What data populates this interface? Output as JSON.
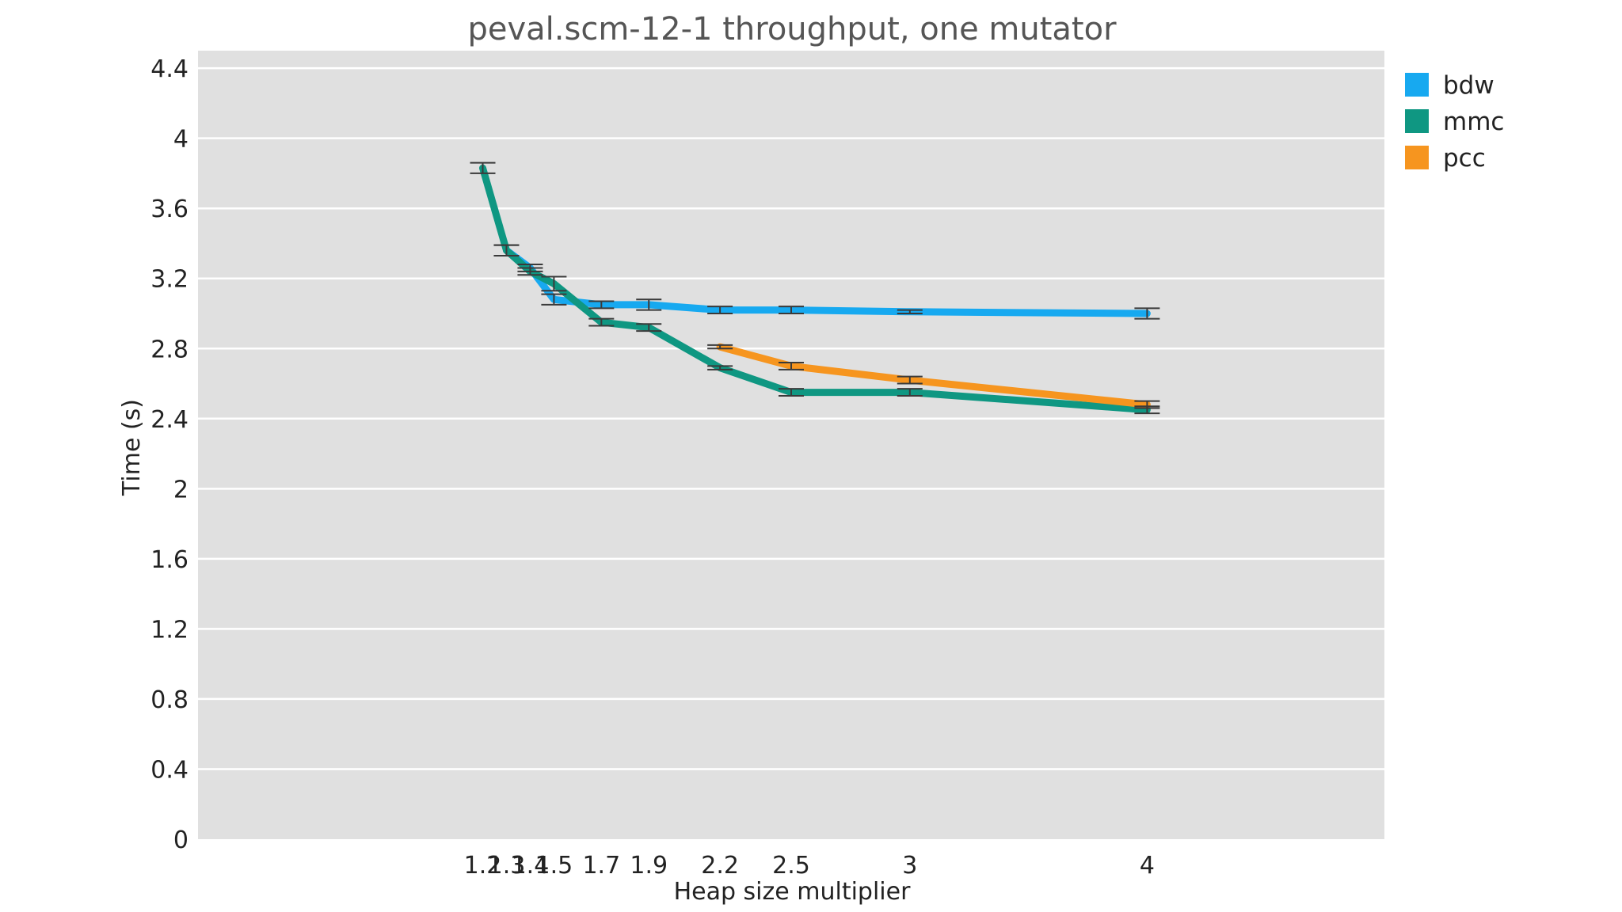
{
  "chart_data": {
    "type": "line",
    "title": "peval.scm-12-1 throughput, one mutator",
    "xlabel": "Heap size multiplier",
    "ylabel": "Time (s)",
    "xlim": [
      0,
      5
    ],
    "ylim": [
      0,
      4.5
    ],
    "x_ticks": [
      1.2,
      1.3,
      1.4,
      1.5,
      1.7,
      1.9,
      2.2,
      2.5,
      3,
      4
    ],
    "x_tick_labels": [
      "1.2",
      "1.3",
      "1.4",
      "1.5",
      "1.7",
      "1.9",
      "2.2",
      "2.5",
      "3",
      "4"
    ],
    "y_ticks": [
      0,
      0.4,
      0.8,
      1.2,
      1.6,
      2,
      2.4,
      2.8,
      3.2,
      3.6,
      4,
      4.4
    ],
    "y_tick_labels": [
      "0",
      "0.4",
      "0.8",
      "1.2",
      "1.6",
      "2",
      "2.4",
      "2.8",
      "3.2",
      "3.6",
      "4",
      "4.4"
    ],
    "grid": true,
    "legend_position": "outside-right-top",
    "series": [
      {
        "name": "bdw",
        "color": "#17a9f0",
        "x": [
          1.3,
          1.4,
          1.5,
          1.7,
          1.9,
          2.2,
          2.5,
          3,
          4
        ],
        "y": [
          3.36,
          3.26,
          3.08,
          3.05,
          3.05,
          3.02,
          3.02,
          3.01,
          3.0
        ],
        "err": [
          0.03,
          0.02,
          0.03,
          0.02,
          0.03,
          0.02,
          0.02,
          0.01,
          0.03
        ]
      },
      {
        "name": "mmc",
        "color": "#0f9782",
        "x": [
          1.2,
          1.3,
          1.4,
          1.5,
          1.7,
          1.9,
          2.2,
          2.5,
          3,
          4
        ],
        "y": [
          3.83,
          3.36,
          3.24,
          3.17,
          2.95,
          2.92,
          2.69,
          2.55,
          2.55,
          2.45
        ],
        "err": [
          0.03,
          0.03,
          0.02,
          0.04,
          0.02,
          0.02,
          0.01,
          0.02,
          0.02,
          0.02
        ]
      },
      {
        "name": "pcc",
        "color": "#f6951f",
        "x": [
          2.2,
          2.5,
          3,
          4
        ],
        "y": [
          2.81,
          2.7,
          2.62,
          2.48
        ],
        "err": [
          0.01,
          0.02,
          0.02,
          0.02
        ]
      }
    ]
  }
}
